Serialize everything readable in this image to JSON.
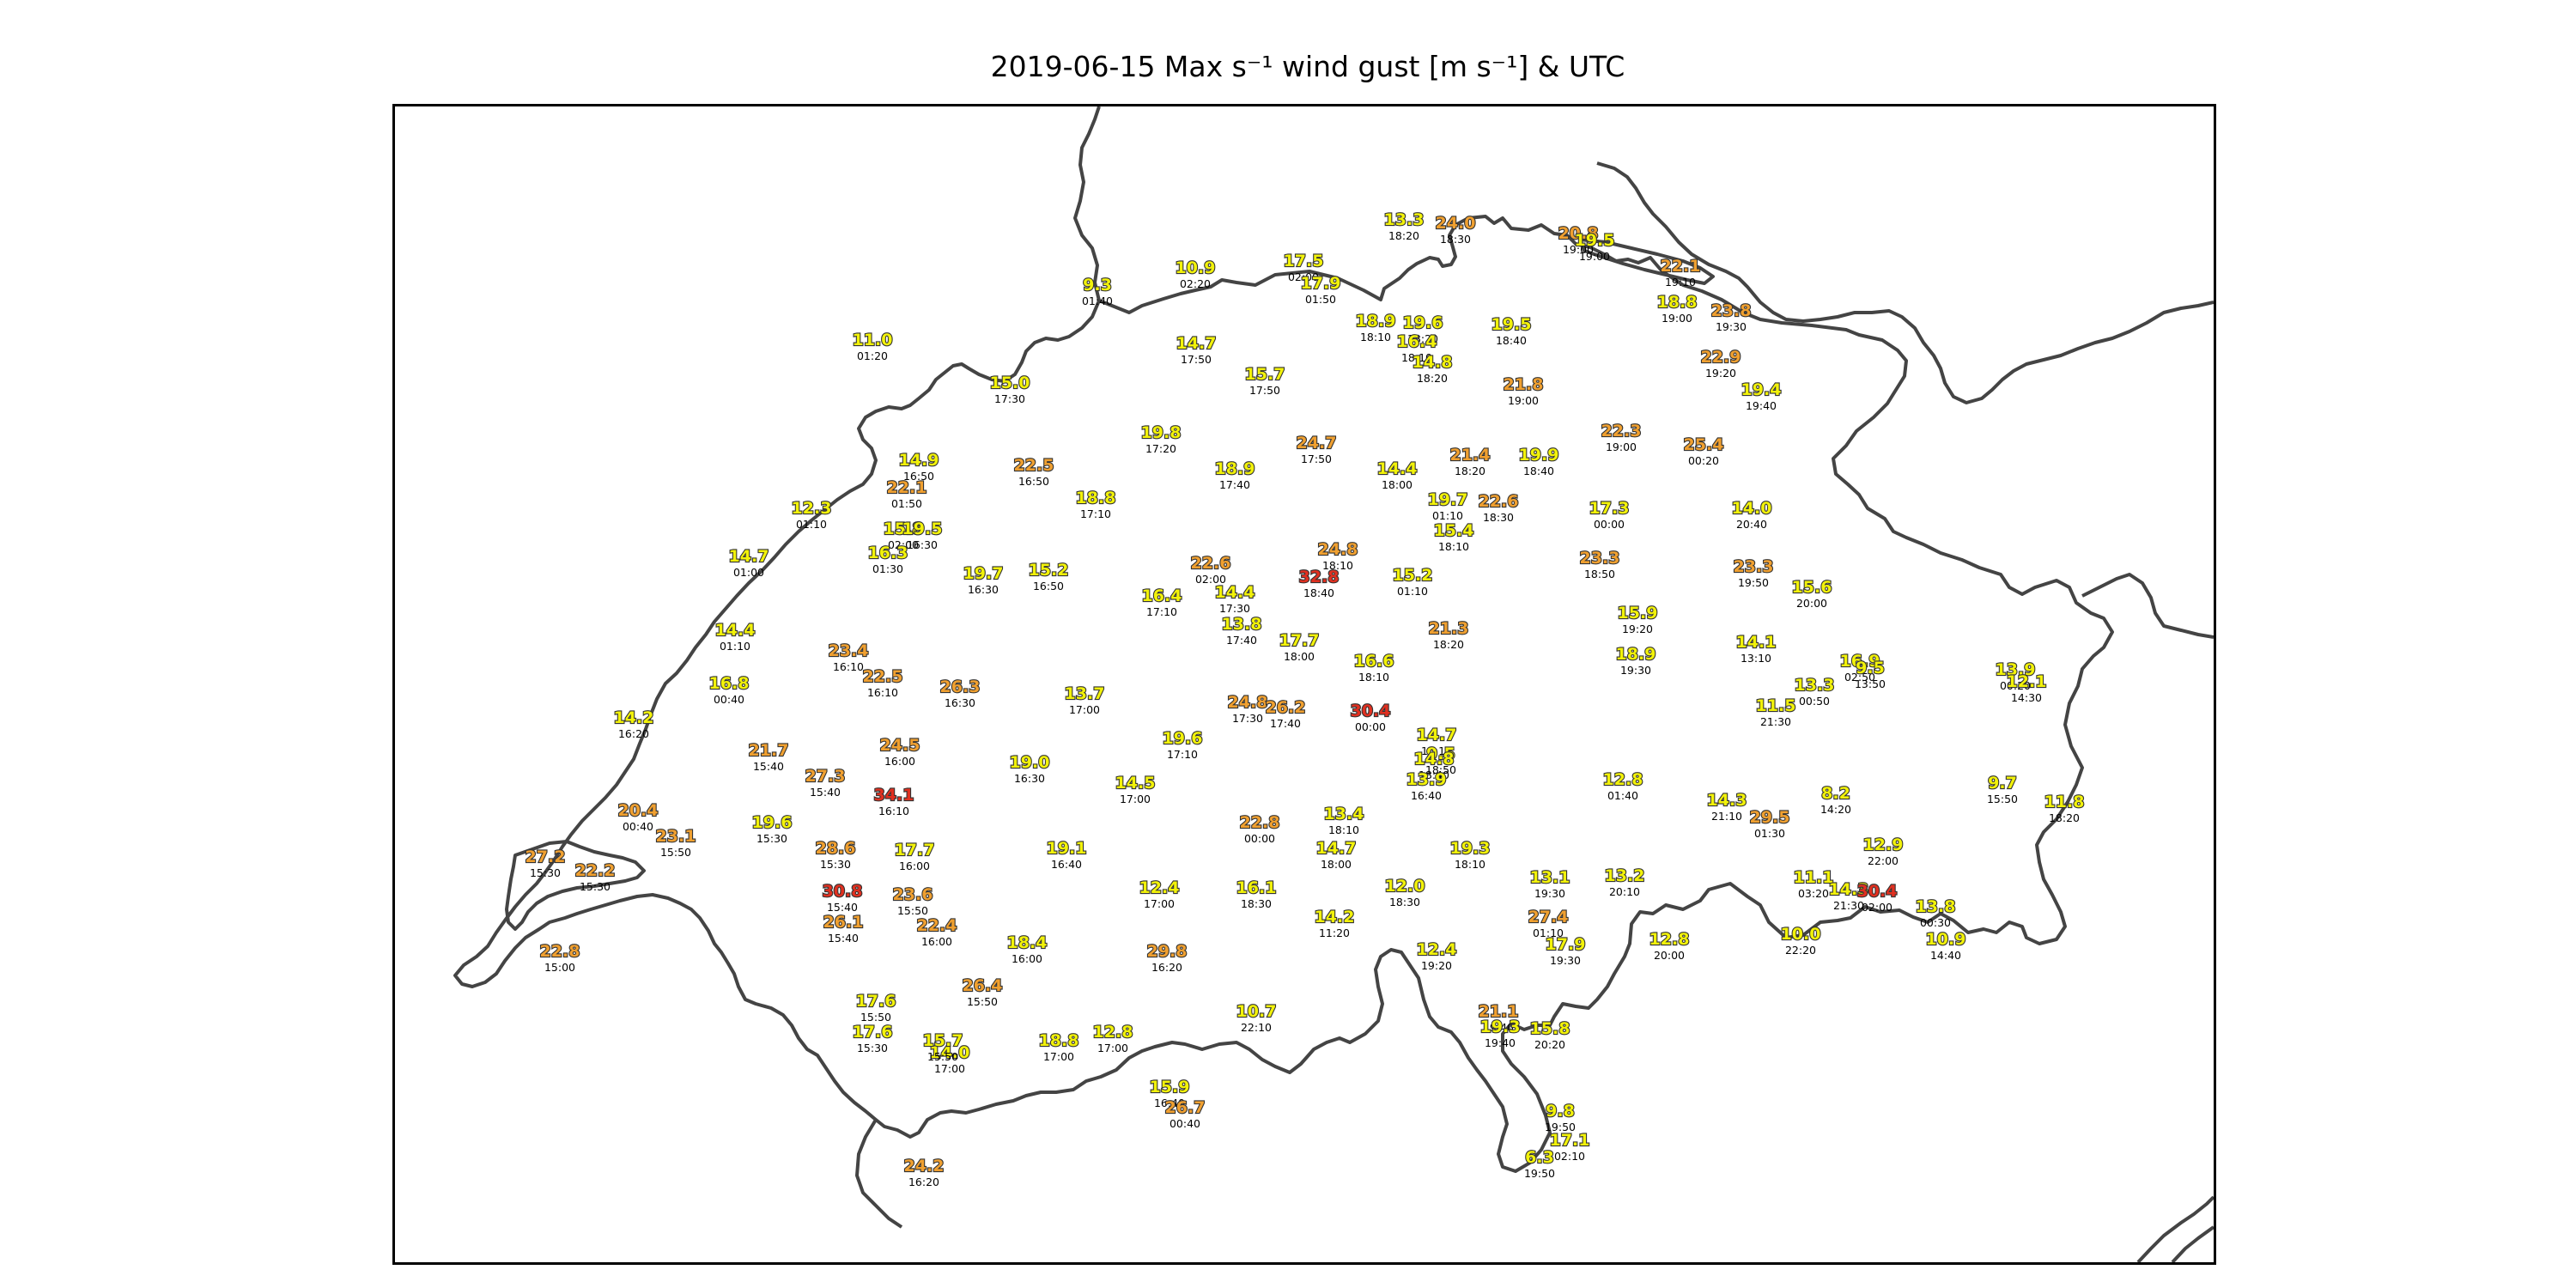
{
  "title": "2019-06-15 Max s⁻¹ wind gust [m s⁻¹] & UTC",
  "color_scale": {
    "low": "#f2f20a",
    "mid": "#f0a030",
    "high": "#e03020",
    "outline": "#333333",
    "border": "#444444"
  },
  "stations": [
    {
      "value": "13.3",
      "time": "18:20"
    },
    {
      "value": "24.0",
      "time": "18:30"
    },
    {
      "value": "20.8",
      "time": "19:00"
    },
    {
      "value": "19.5",
      "time": "19:00"
    },
    {
      "value": "17.5",
      "time": "02:00"
    },
    {
      "value": "17.9",
      "time": "01:50"
    },
    {
      "value": "10.9",
      "time": "02:20"
    },
    {
      "value": "9.3",
      "time": "01:40"
    },
    {
      "value": "22.1",
      "time": "19:10"
    },
    {
      "value": "18.8",
      "time": "19:00"
    },
    {
      "value": "23.8",
      "time": "19:30"
    },
    {
      "value": "18.9",
      "time": "18:10"
    },
    {
      "value": "19.6",
      "time": "18:20"
    },
    {
      "value": "16.4",
      "time": "18:10"
    },
    {
      "value": "14.8",
      "time": "18:20"
    },
    {
      "value": "19.5",
      "time": "18:40"
    },
    {
      "value": "21.8",
      "time": "19:00"
    },
    {
      "value": "22.9",
      "time": "19:20"
    },
    {
      "value": "19.4",
      "time": "19:40"
    },
    {
      "value": "14.7",
      "time": "17:50"
    },
    {
      "value": "15.7",
      "time": "17:50"
    },
    {
      "value": "11.0",
      "time": "01:20"
    },
    {
      "value": "15.0",
      "time": "17:30"
    },
    {
      "value": "19.8",
      "time": "17:20"
    },
    {
      "value": "24.7",
      "time": "17:50"
    },
    {
      "value": "22.3",
      "time": "19:00"
    },
    {
      "value": "25.4",
      "time": "00:20"
    },
    {
      "value": "14.9",
      "time": "16:50"
    },
    {
      "value": "22.5",
      "time": "16:50"
    },
    {
      "value": "18.9",
      "time": "17:40"
    },
    {
      "value": "14.4",
      "time": "18:00"
    },
    {
      "value": "21.4",
      "time": "18:20"
    },
    {
      "value": "19.9",
      "time": "18:40"
    },
    {
      "value": "22.1",
      "time": "01:50"
    },
    {
      "value": "18.8",
      "time": "17:10"
    },
    {
      "value": "19.7",
      "time": "01:10"
    },
    {
      "value": "22.6",
      "time": "18:30"
    },
    {
      "value": "17.3",
      "time": "00:00"
    },
    {
      "value": "14.0",
      "time": "20:40"
    },
    {
      "value": "12.3",
      "time": "01:10"
    },
    {
      "value": "15.8",
      "time": "02:00"
    },
    {
      "value": "19.5",
      "time": "16:30"
    },
    {
      "value": "15.4",
      "time": "18:10"
    },
    {
      "value": "16.3",
      "time": "01:30"
    },
    {
      "value": "14.7",
      "time": "01:00"
    },
    {
      "value": "19.7",
      "time": "16:30"
    },
    {
      "value": "15.2",
      "time": "16:50"
    },
    {
      "value": "22.6",
      "time": "02:00"
    },
    {
      "value": "24.8",
      "time": "18:10"
    },
    {
      "value": "32.8",
      "time": "18:40"
    },
    {
      "value": "15.2",
      "time": "01:10"
    },
    {
      "value": "23.3",
      "time": "18:50"
    },
    {
      "value": "23.3",
      "time": "19:50"
    },
    {
      "value": "15.6",
      "time": "20:00"
    },
    {
      "value": "16.4",
      "time": "17:10"
    },
    {
      "value": "14.4",
      "time": "17:30"
    },
    {
      "value": "13.8",
      "time": "17:40"
    },
    {
      "value": "15.9",
      "time": "19:20"
    },
    {
      "value": "14.4",
      "time": "01:10"
    },
    {
      "value": "21.3",
      "time": "18:20"
    },
    {
      "value": "23.4",
      "time": "16:10"
    },
    {
      "value": "17.7",
      "time": "18:00"
    },
    {
      "value": "14.1",
      "time": "13:10"
    },
    {
      "value": "16.8",
      "time": "00:40"
    },
    {
      "value": "22.5",
      "time": "16:10"
    },
    {
      "value": "26.3",
      "time": "16:30"
    },
    {
      "value": "16.6",
      "time": "18:10"
    },
    {
      "value": "18.9",
      "time": "19:30"
    },
    {
      "value": "16.9",
      "time": "02:50"
    },
    {
      "value": "9.5",
      "time": "13:50"
    },
    {
      "value": "13.3",
      "time": "00:50"
    },
    {
      "value": "13.9",
      "time": "00:20"
    },
    {
      "value": "12.1",
      "time": "14:30"
    },
    {
      "value": "13.7",
      "time": "17:00"
    },
    {
      "value": "24.8",
      "time": "17:30"
    },
    {
      "value": "26.2",
      "time": "17:40"
    },
    {
      "value": "30.4",
      "time": "00:00"
    },
    {
      "value": "11.5",
      "time": "21:30"
    },
    {
      "value": "14.2",
      "time": "16:20"
    },
    {
      "value": "24.5",
      "time": "16:00"
    },
    {
      "value": "19.6",
      "time": "17:10"
    },
    {
      "value": "14.7",
      "time": "16:10"
    },
    {
      "value": "9.5",
      "time": "18:50"
    },
    {
      "value": "21.7",
      "time": "15:40"
    },
    {
      "value": "19.0",
      "time": "16:30"
    },
    {
      "value": "14.8",
      "time": "18:40"
    },
    {
      "value": "27.3",
      "time": "15:40"
    },
    {
      "value": "14.5",
      "time": "17:00"
    },
    {
      "value": "13.9",
      "time": "16:40"
    },
    {
      "value": "12.8",
      "time": "01:40"
    },
    {
      "value": "34.1",
      "time": "16:10"
    },
    {
      "value": "20.4",
      "time": "00:40"
    },
    {
      "value": "13.4",
      "time": "18:10"
    },
    {
      "value": "14.3",
      "time": "21:10"
    },
    {
      "value": "29.5",
      "time": "01:30"
    },
    {
      "value": "8.2",
      "time": "14:20"
    },
    {
      "value": "9.7",
      "time": "15:50"
    },
    {
      "value": "11.8",
      "time": "18:20"
    },
    {
      "value": "22.8",
      "time": "00:00"
    },
    {
      "value": "19.6",
      "time": "15:30"
    },
    {
      "value": "23.1",
      "time": "15:50"
    },
    {
      "value": "28.6",
      "time": "15:30"
    },
    {
      "value": "17.7",
      "time": "16:00"
    },
    {
      "value": "19.1",
      "time": "16:40"
    },
    {
      "value": "14.7",
      "time": "18:00"
    },
    {
      "value": "19.3",
      "time": "18:10"
    },
    {
      "value": "12.9",
      "time": "22:00"
    },
    {
      "value": "27.2",
      "time": "15:30"
    },
    {
      "value": "22.2",
      "time": "15:30"
    },
    {
      "value": "30.8",
      "time": "15:40"
    },
    {
      "value": "23.6",
      "time": "15:50"
    },
    {
      "value": "12.4",
      "time": "17:00"
    },
    {
      "value": "16.1",
      "time": "18:30"
    },
    {
      "value": "12.0",
      "time": "18:30"
    },
    {
      "value": "13.1",
      "time": "19:30"
    },
    {
      "value": "13.2",
      "time": "20:10"
    },
    {
      "value": "11.1",
      "time": "03:20"
    },
    {
      "value": "14.3",
      "time": "21:30"
    },
    {
      "value": "30.4",
      "time": "02:00"
    },
    {
      "value": "13.8",
      "time": "00:30"
    },
    {
      "value": "26.1",
      "time": "15:40"
    },
    {
      "value": "22.4",
      "time": "16:00"
    },
    {
      "value": "14.2",
      "time": "11:20"
    },
    {
      "value": "27.4",
      "time": "01:10"
    },
    {
      "value": "10.0",
      "time": "22:20"
    },
    {
      "value": "10.9",
      "time": "14:40"
    },
    {
      "value": "22.8",
      "time": "15:00"
    },
    {
      "value": "18.4",
      "time": "16:00"
    },
    {
      "value": "29.8",
      "time": "16:20"
    },
    {
      "value": "12.4",
      "time": "19:20"
    },
    {
      "value": "17.9",
      "time": "19:30"
    },
    {
      "value": "12.8",
      "time": "20:00"
    },
    {
      "value": "26.4",
      "time": "15:50"
    },
    {
      "value": "17.6",
      "time": "15:50"
    },
    {
      "value": "10.7",
      "time": "22:10"
    },
    {
      "value": "21.1",
      "time": "19:40"
    },
    {
      "value": "19.3",
      "time": "19:40"
    },
    {
      "value": "15.8",
      "time": "20:20"
    },
    {
      "value": "17.6",
      "time": "15:30"
    },
    {
      "value": "14.0",
      "time": "17:00"
    },
    {
      "value": "15.7",
      "time": "15:50"
    },
    {
      "value": "18.8",
      "time": "17:00"
    },
    {
      "value": "12.8",
      "time": "17:00"
    },
    {
      "value": "15.9",
      "time": "16:40"
    },
    {
      "value": "26.7",
      "time": "00:40"
    },
    {
      "value": "9.8",
      "time": "19:50"
    },
    {
      "value": "17.1",
      "time": "02:10"
    },
    {
      "value": "6.3",
      "time": "19:50"
    },
    {
      "value": "24.2",
      "time": "16:20"
    }
  ]
}
